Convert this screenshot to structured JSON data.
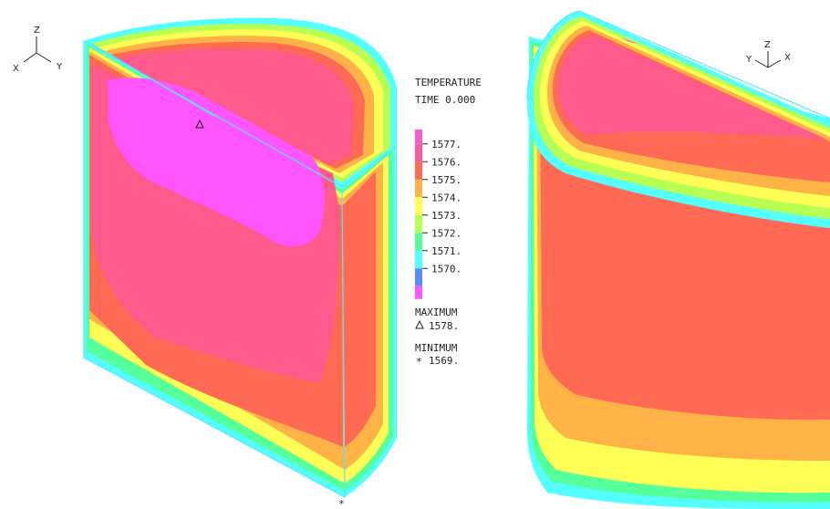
{
  "legend": {
    "title": "TEMPERATURE",
    "time": "TIME 0.000",
    "levels": [
      {
        "label": "1577.",
        "color": "#ff5aa0"
      },
      {
        "label": "1576.",
        "color": "#ff6a55"
      },
      {
        "label": "1575.",
        "color": "#ffb347"
      },
      {
        "label": "1574.",
        "color": "#ffff55"
      },
      {
        "label": "1573.",
        "color": "#b8ff55"
      },
      {
        "label": "1572.",
        "color": "#55ff9a"
      },
      {
        "label": "1571.",
        "color": "#55ffff"
      },
      {
        "label": "1570.",
        "color": "#5a8cff"
      }
    ],
    "top_color": "#ff5ac8",
    "bottom_color": "#ff55ff",
    "maximum_label": "MAXIMUM",
    "maximum_value": "1578.",
    "minimum_label": "MINIMUM",
    "minimum_value": "1569."
  },
  "axes_left": {
    "z": "Z",
    "x": "X",
    "y": "Y"
  },
  "axes_right": {
    "z": "Z",
    "y": "Y",
    "x": "X"
  },
  "colors": {
    "hot_magenta": "#ff55ff",
    "hot_pink": "#ff5a8c",
    "orange_red": "#ff6a55",
    "orange": "#ffb347",
    "yellow": "#ffff55",
    "light_green": "#b8ff55",
    "green": "#55ff9a",
    "cyan": "#55ffff",
    "blue": "#5a8cff",
    "edge": "#55e6ff"
  }
}
